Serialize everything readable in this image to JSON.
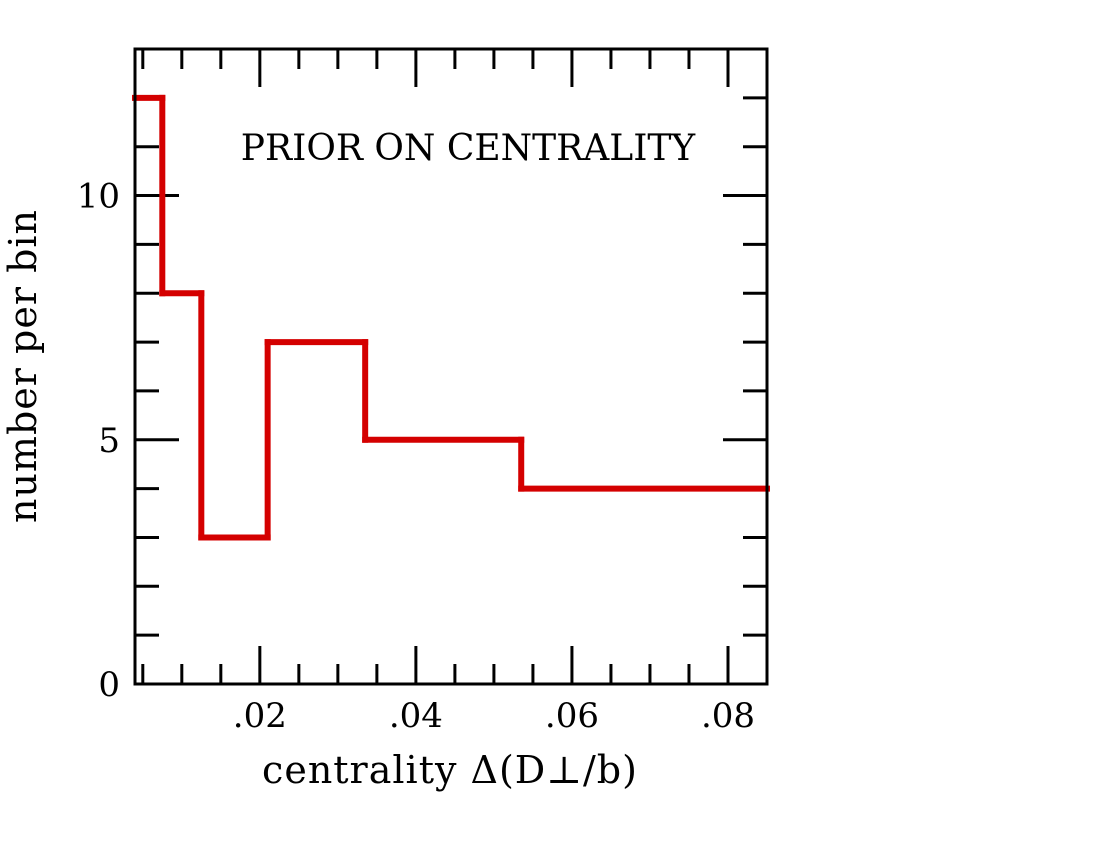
{
  "chart_data": {
    "type": "histogram",
    "annotation": "PRIOR ON CENTRALITY",
    "xlabel": "centrality Δ(D⊥/b)",
    "ylabel": "number per bin",
    "xlim": [
      0.004,
      0.085
    ],
    "ylim": [
      0,
      13
    ],
    "x_ticks": [
      {
        "value": 0.02,
        "label": ".02"
      },
      {
        "value": 0.04,
        "label": ".04"
      },
      {
        "value": 0.06,
        "label": ".06"
      },
      {
        "value": 0.08,
        "label": ".08"
      }
    ],
    "y_ticks": [
      {
        "value": 0,
        "label": "0"
      },
      {
        "value": 5,
        "label": "5"
      },
      {
        "value": 10,
        "label": "10"
      }
    ],
    "x_minor_step": 0.005,
    "y_minor_step": 1,
    "line_color": "#d40000",
    "bins": [
      {
        "x0": 0.004,
        "x1": 0.0075,
        "count": 12
      },
      {
        "x0": 0.0075,
        "x1": 0.0125,
        "count": 8
      },
      {
        "x0": 0.0125,
        "x1": 0.021,
        "count": 3
      },
      {
        "x0": 0.021,
        "x1": 0.0335,
        "count": 7
      },
      {
        "x0": 0.0335,
        "x1": 0.0535,
        "count": 5
      },
      {
        "x0": 0.0535,
        "x1": 0.085,
        "count": 4
      }
    ]
  }
}
